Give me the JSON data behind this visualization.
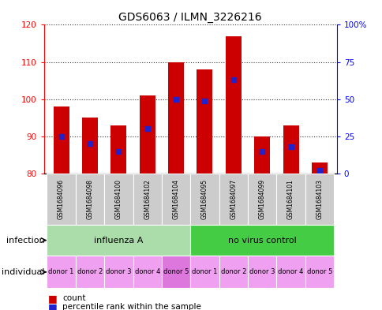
{
  "title": "GDS6063 / ILMN_3226216",
  "samples": [
    "GSM1684096",
    "GSM1684098",
    "GSM1684100",
    "GSM1684102",
    "GSM1684104",
    "GSM1684095",
    "GSM1684097",
    "GSM1684099",
    "GSM1684101",
    "GSM1684103"
  ],
  "counts": [
    98,
    95,
    93,
    101,
    110,
    108,
    117,
    90,
    93,
    83
  ],
  "percentile_ranks": [
    25,
    20,
    15,
    30,
    50,
    49,
    63,
    15,
    18,
    2
  ],
  "ylim_left": [
    80,
    120
  ],
  "ylim_right": [
    0,
    100
  ],
  "yticks_left": [
    80,
    90,
    100,
    110,
    120
  ],
  "yticks_right": [
    0,
    25,
    50,
    75,
    100
  ],
  "bar_color": "#cc0000",
  "percentile_color": "#2222cc",
  "bar_bottom": 80,
  "groups": [
    {
      "label": "influenza A",
      "start": 0,
      "end": 5,
      "color": "#aaddaa"
    },
    {
      "label": "no virus control",
      "start": 5,
      "end": 10,
      "color": "#44cc44"
    }
  ],
  "individuals": [
    "donor 1",
    "donor 2",
    "donor 3",
    "donor 4",
    "donor 5",
    "donor 1",
    "donor 2",
    "donor 3",
    "donor 4",
    "donor 5"
  ],
  "individual_colors": [
    "#f0a0f0",
    "#f0a0f0",
    "#f0a0f0",
    "#f0a0f0",
    "#dd77dd",
    "#f0a0f0",
    "#f0a0f0",
    "#f0a0f0",
    "#f0a0f0",
    "#f0a0f0"
  ],
  "infection_label": "infection",
  "individual_label": "individual",
  "legend_count_label": "count",
  "legend_percentile_label": "percentile rank within the sample",
  "sample_bg_color": "#cccccc",
  "title_fontsize": 10,
  "tick_fontsize": 7.5,
  "label_fontsize": 8
}
